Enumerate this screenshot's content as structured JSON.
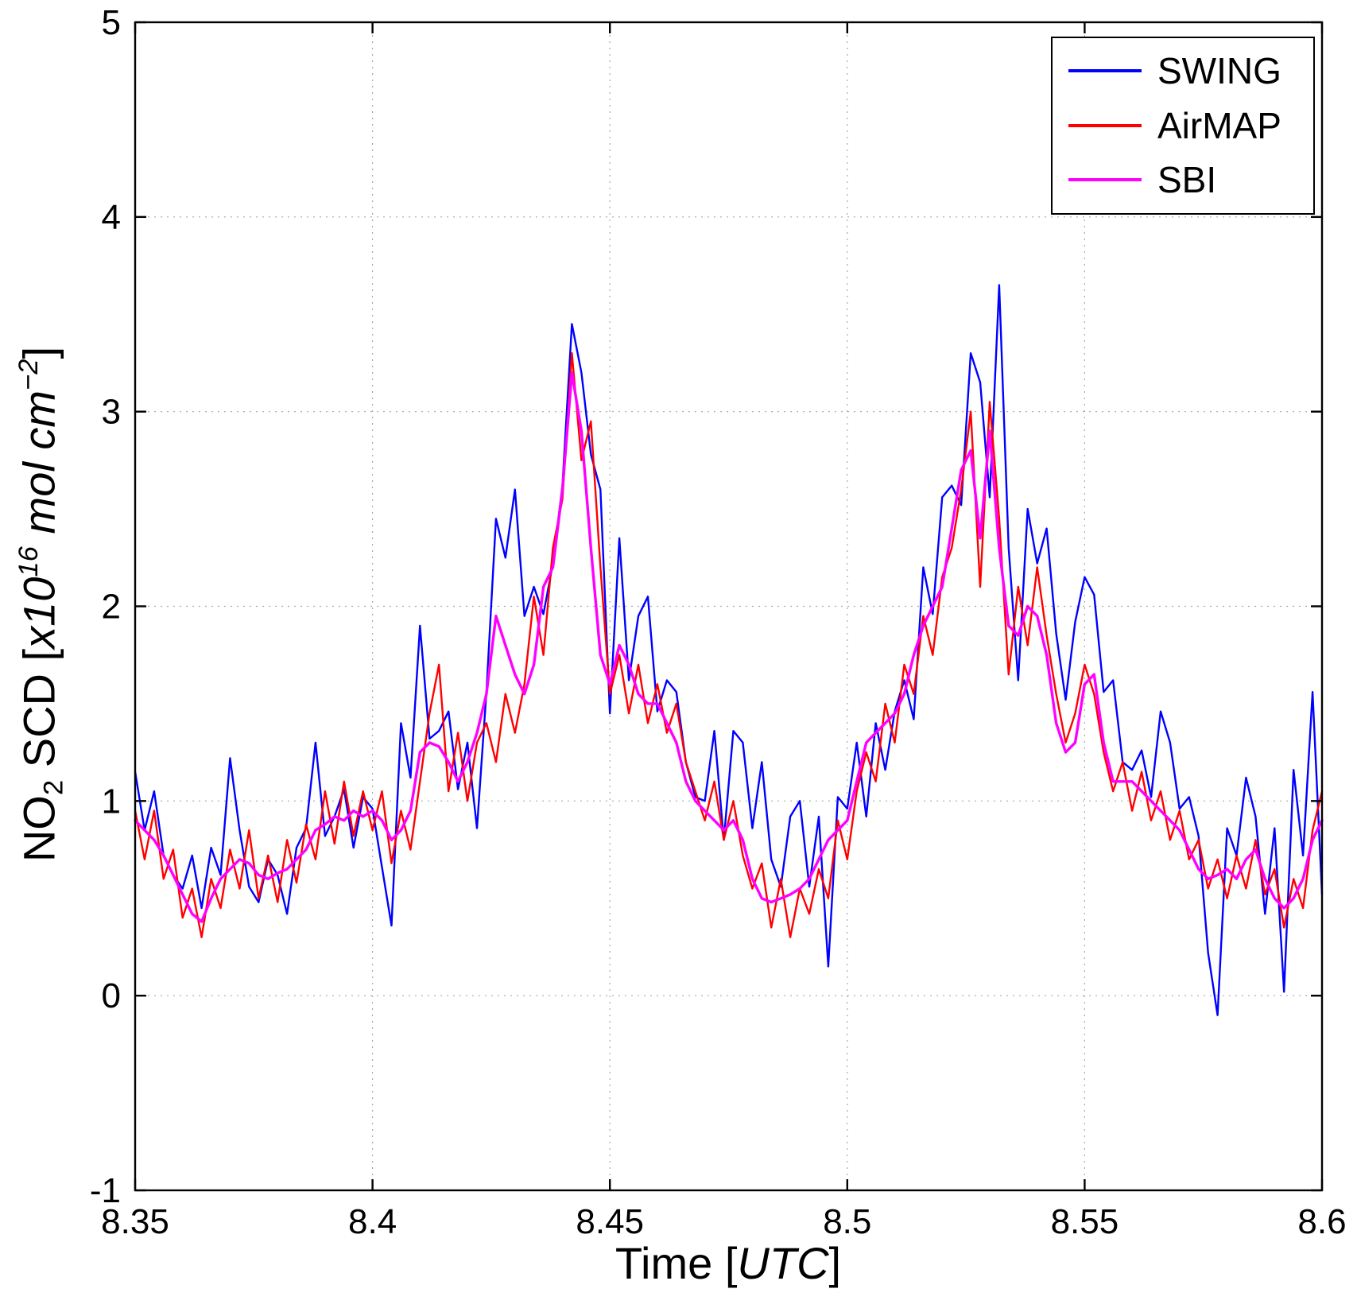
{
  "figure": {
    "background": "#ffffff"
  },
  "labels": {
    "xlabel_parts": {
      "pre": "Time [",
      "italic": "UTC",
      "post": "]"
    },
    "ylabel_parts": {
      "base": "NO",
      "sub": "2",
      "scd": " SCD [",
      "x10": "x10",
      "exp": "16",
      "unit": " mol cm",
      "exp2": "−2",
      "close": "]"
    }
  },
  "chart_data": {
    "type": "line",
    "title": "",
    "xlabel": "Time [UTC]",
    "ylabel": "NO2 SCD [x10^16 mol cm^-2]",
    "xlim": [
      8.35,
      8.6
    ],
    "ylim": [
      -1,
      5
    ],
    "xticks": [
      8.35,
      8.4,
      8.45,
      8.5,
      8.55,
      8.6
    ],
    "xtick_labels": [
      "8.35",
      "8.4",
      "8.45",
      "8.5",
      "8.55",
      "8.6"
    ],
    "yticks": [
      -1,
      0,
      1,
      2,
      3,
      4,
      5
    ],
    "ytick_labels": [
      "-1",
      "0",
      "1",
      "2",
      "3",
      "4",
      "5"
    ],
    "grid": true,
    "legend_position": "top-right",
    "x": [
      8.35,
      8.352,
      8.354,
      8.356,
      8.358,
      8.36,
      8.362,
      8.364,
      8.366,
      8.368,
      8.37,
      8.372,
      8.374,
      8.376,
      8.378,
      8.38,
      8.382,
      8.384,
      8.386,
      8.388,
      8.39,
      8.392,
      8.394,
      8.396,
      8.398,
      8.4,
      8.402,
      8.404,
      8.406,
      8.408,
      8.41,
      8.412,
      8.414,
      8.416,
      8.418,
      8.42,
      8.422,
      8.424,
      8.426,
      8.428,
      8.43,
      8.432,
      8.434,
      8.436,
      8.438,
      8.44,
      8.442,
      8.444,
      8.446,
      8.448,
      8.45,
      8.452,
      8.454,
      8.456,
      8.458,
      8.46,
      8.462,
      8.464,
      8.466,
      8.468,
      8.47,
      8.472,
      8.474,
      8.476,
      8.478,
      8.48,
      8.482,
      8.484,
      8.486,
      8.488,
      8.49,
      8.492,
      8.494,
      8.496,
      8.498,
      8.5,
      8.502,
      8.504,
      8.506,
      8.508,
      8.51,
      8.512,
      8.514,
      8.516,
      8.518,
      8.52,
      8.522,
      8.524,
      8.526,
      8.528,
      8.53,
      8.532,
      8.534,
      8.536,
      8.538,
      8.54,
      8.542,
      8.544,
      8.546,
      8.548,
      8.55,
      8.552,
      8.554,
      8.556,
      8.558,
      8.56,
      8.562,
      8.564,
      8.566,
      8.568,
      8.57,
      8.572,
      8.574,
      8.576,
      8.578,
      8.58,
      8.582,
      8.584,
      8.586,
      8.588,
      8.59,
      8.592,
      8.594,
      8.596,
      8.598,
      8.6
    ],
    "series": [
      {
        "name": "SWING",
        "color": "#0000ff",
        "values": [
          1.15,
          0.85,
          1.05,
          0.72,
          0.62,
          0.55,
          0.72,
          0.45,
          0.76,
          0.62,
          1.22,
          0.85,
          0.56,
          0.48,
          0.7,
          0.62,
          0.42,
          0.76,
          0.86,
          1.3,
          0.82,
          0.92,
          1.06,
          0.76,
          1.02,
          0.96,
          0.66,
          0.36,
          1.4,
          1.12,
          1.9,
          1.32,
          1.36,
          1.46,
          1.06,
          1.3,
          0.86,
          1.56,
          2.45,
          2.25,
          2.6,
          1.95,
          2.1,
          1.96,
          2.22,
          2.62,
          3.45,
          3.2,
          2.78,
          2.6,
          1.45,
          2.35,
          1.62,
          1.95,
          2.05,
          1.46,
          1.62,
          1.56,
          1.2,
          1.02,
          1.0,
          1.36,
          0.8,
          1.36,
          1.3,
          0.86,
          1.2,
          0.7,
          0.56,
          0.92,
          1.0,
          0.56,
          0.92,
          0.15,
          1.02,
          0.96,
          1.3,
          0.92,
          1.4,
          1.16,
          1.46,
          1.62,
          1.42,
          2.2,
          1.96,
          2.56,
          2.62,
          2.52,
          3.3,
          3.15,
          2.56,
          3.65,
          2.3,
          1.62,
          2.5,
          2.22,
          2.4,
          1.86,
          1.52,
          1.92,
          2.15,
          2.06,
          1.56,
          1.62,
          1.2,
          1.16,
          1.26,
          1.02,
          1.46,
          1.3,
          0.96,
          1.02,
          0.82,
          0.22,
          -0.1,
          0.86,
          0.72,
          1.12,
          0.92,
          0.42,
          0.86,
          0.02,
          1.16,
          0.72,
          1.56,
          0.52
        ]
      },
      {
        "name": "AirMAP",
        "color": "#ff0000",
        "values": [
          0.95,
          0.7,
          0.95,
          0.6,
          0.75,
          0.4,
          0.55,
          0.3,
          0.6,
          0.45,
          0.75,
          0.55,
          0.85,
          0.5,
          0.72,
          0.48,
          0.8,
          0.58,
          0.88,
          0.7,
          1.05,
          0.78,
          1.1,
          0.82,
          1.05,
          0.85,
          1.05,
          0.68,
          0.95,
          0.75,
          1.1,
          1.45,
          1.7,
          1.05,
          1.35,
          1.0,
          1.3,
          1.4,
          1.2,
          1.55,
          1.35,
          1.6,
          2.05,
          1.75,
          2.3,
          2.55,
          3.3,
          2.75,
          2.95,
          2.2,
          1.55,
          1.75,
          1.45,
          1.7,
          1.4,
          1.6,
          1.35,
          1.5,
          1.2,
          1.05,
          0.9,
          1.1,
          0.8,
          1.0,
          0.72,
          0.55,
          0.68,
          0.35,
          0.6,
          0.3,
          0.55,
          0.42,
          0.65,
          0.5,
          0.9,
          0.7,
          1.05,
          1.25,
          1.1,
          1.5,
          1.3,
          1.7,
          1.55,
          1.95,
          1.75,
          2.15,
          2.3,
          2.6,
          3.0,
          2.1,
          3.05,
          2.45,
          1.65,
          2.1,
          1.8,
          2.2,
          1.85,
          1.55,
          1.3,
          1.45,
          1.7,
          1.55,
          1.25,
          1.05,
          1.2,
          0.95,
          1.15,
          0.9,
          1.05,
          0.8,
          0.95,
          0.7,
          0.8,
          0.55,
          0.7,
          0.5,
          0.72,
          0.55,
          0.8,
          0.52,
          0.65,
          0.35,
          0.6,
          0.45,
          0.85,
          1.05
        ]
      },
      {
        "name": "SBI",
        "color": "#ff00ff",
        "values": [
          0.9,
          0.85,
          0.8,
          0.72,
          0.62,
          0.52,
          0.42,
          0.38,
          0.5,
          0.6,
          0.65,
          0.7,
          0.68,
          0.62,
          0.6,
          0.63,
          0.65,
          0.7,
          0.75,
          0.85,
          0.88,
          0.92,
          0.9,
          0.95,
          0.92,
          0.95,
          0.9,
          0.8,
          0.85,
          0.95,
          1.25,
          1.3,
          1.28,
          1.2,
          1.1,
          1.2,
          1.35,
          1.55,
          1.95,
          1.8,
          1.65,
          1.55,
          1.7,
          2.1,
          2.2,
          2.6,
          3.2,
          2.9,
          2.3,
          1.75,
          1.6,
          1.8,
          1.7,
          1.55,
          1.5,
          1.5,
          1.4,
          1.3,
          1.1,
          1.0,
          0.95,
          0.9,
          0.85,
          0.9,
          0.8,
          0.6,
          0.5,
          0.48,
          0.5,
          0.52,
          0.55,
          0.6,
          0.7,
          0.8,
          0.85,
          0.9,
          1.1,
          1.3,
          1.35,
          1.4,
          1.45,
          1.55,
          1.75,
          1.9,
          2.0,
          2.1,
          2.4,
          2.7,
          2.8,
          2.35,
          2.9,
          2.3,
          1.9,
          1.85,
          2.0,
          1.95,
          1.75,
          1.4,
          1.25,
          1.3,
          1.6,
          1.65,
          1.3,
          1.1,
          1.1,
          1.1,
          1.05,
          1.0,
          0.95,
          0.9,
          0.85,
          0.75,
          0.65,
          0.6,
          0.62,
          0.65,
          0.6,
          0.7,
          0.75,
          0.6,
          0.5,
          0.45,
          0.5,
          0.6,
          0.8,
          0.9
        ]
      }
    ]
  }
}
